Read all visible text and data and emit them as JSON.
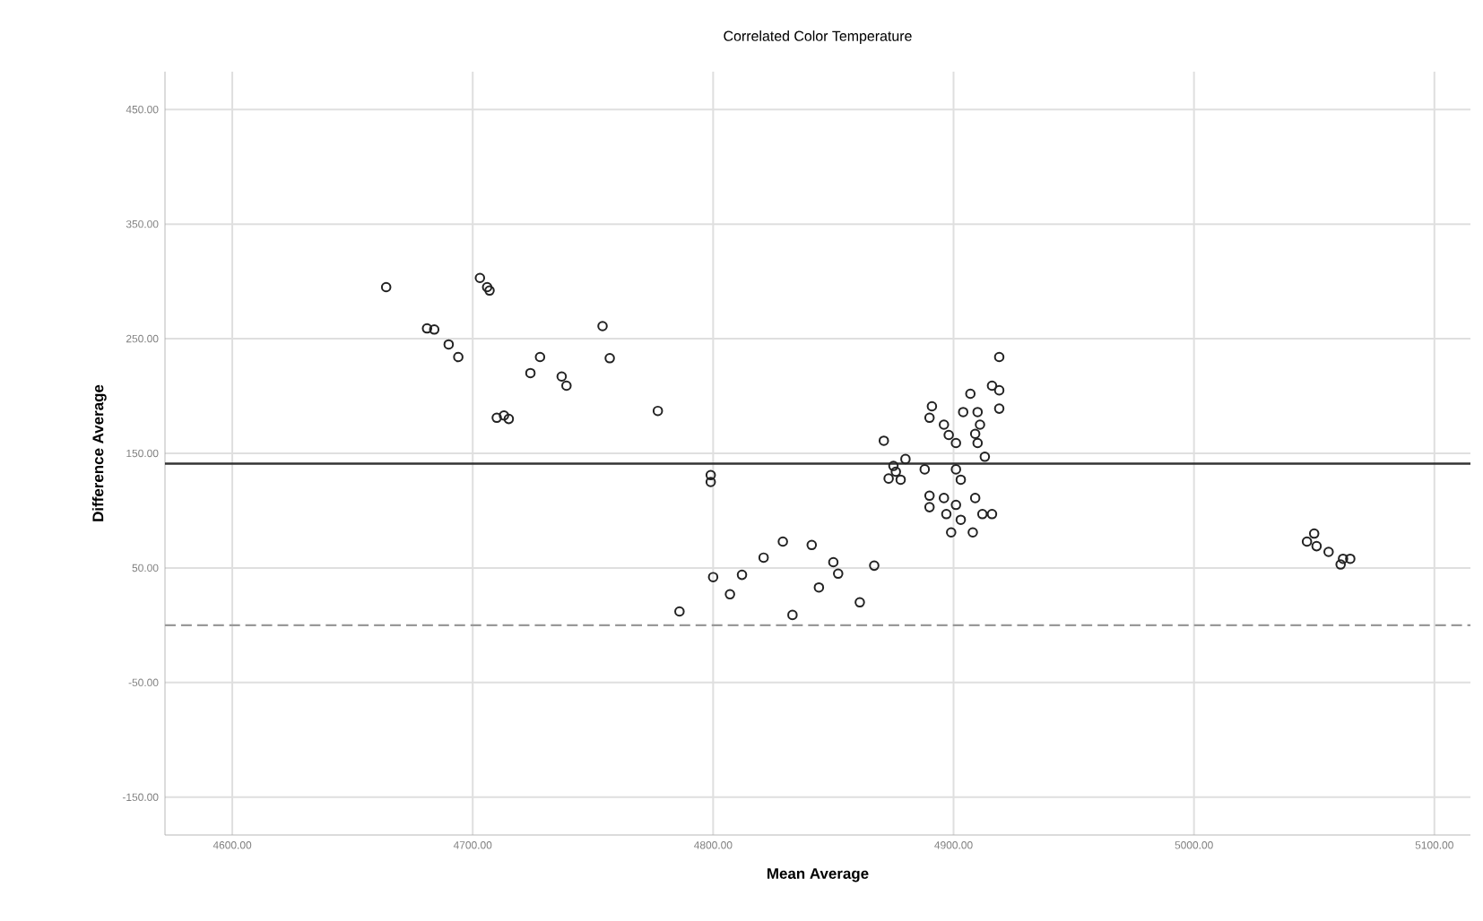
{
  "chart_data": {
    "type": "scatter",
    "title": "Correlated Color Temperature",
    "xlabel": "Mean Average",
    "ylabel": "Difference Average",
    "xlim": [
      4572,
      5115
    ],
    "ylim": [
      -183,
      483
    ],
    "xticks": [
      {
        "value": 4600,
        "label": "4600.00"
      },
      {
        "value": 4700,
        "label": "4700.00"
      },
      {
        "value": 4800,
        "label": "4800.00"
      },
      {
        "value": 4900,
        "label": "4900.00"
      },
      {
        "value": 5000,
        "label": "5000.00"
      },
      {
        "value": 5100,
        "label": "5100.00"
      }
    ],
    "yticks": [
      {
        "value": -150,
        "label": "-150.00"
      },
      {
        "value": -50,
        "label": "-50.00"
      },
      {
        "value": 50,
        "label": "50.00"
      },
      {
        "value": 150,
        "label": "150.00"
      },
      {
        "value": 250,
        "label": "250.00"
      },
      {
        "value": 350,
        "label": "350.00"
      },
      {
        "value": 450,
        "label": "450.00"
      }
    ],
    "grid": true,
    "marker": "circle",
    "ref_lines": [
      {
        "axis": "y",
        "value": 141,
        "color": "#333333",
        "line_style": "solid"
      },
      {
        "axis": "y",
        "value": 0,
        "color": "#999999",
        "line_style": "dashed"
      }
    ],
    "series": [
      {
        "color": "#222222",
        "x": [
          4664,
          4681,
          4684,
          4690,
          4694,
          4703,
          4706,
          4707,
          4710,
          4713,
          4715,
          4724,
          4728,
          4737,
          4739,
          4754,
          4757,
          4777,
          4799,
          4799,
          4786,
          4800,
          4807,
          4812,
          4821,
          4829,
          4833,
          4841,
          4844,
          4850,
          4852,
          4861,
          4867,
          4871,
          4880,
          4875,
          4873,
          4878,
          4888,
          4876,
          4891,
          4890,
          4896,
          4898,
          4901,
          4907,
          4910,
          4904,
          4911,
          4909,
          4910,
          4916,
          4919,
          4919,
          4919,
          4913,
          4901,
          4903,
          4890,
          4890,
          4896,
          4897,
          4901,
          4899,
          4903,
          4908,
          4909,
          4912,
          4916,
          5050,
          5047,
          5051,
          5056,
          5062,
          5061,
          5065
        ],
        "values": [
          295,
          259,
          258,
          245,
          234,
          303,
          295,
          292,
          181,
          183,
          180,
          220,
          234,
          217,
          209,
          261,
          233,
          187,
          131,
          125,
          12,
          42,
          27,
          44,
          59,
          73,
          9,
          70,
          33,
          55,
          45,
          20,
          52,
          161,
          145,
          139,
          128,
          127,
          136,
          134,
          191,
          181,
          175,
          166,
          159,
          202,
          186,
          186,
          175,
          167,
          159,
          209,
          205,
          189,
          234,
          147,
          136,
          127,
          113,
          103,
          111,
          97,
          105,
          81,
          92,
          81,
          111,
          97,
          97,
          80,
          73,
          69,
          64,
          58,
          53,
          58
        ]
      }
    ]
  }
}
